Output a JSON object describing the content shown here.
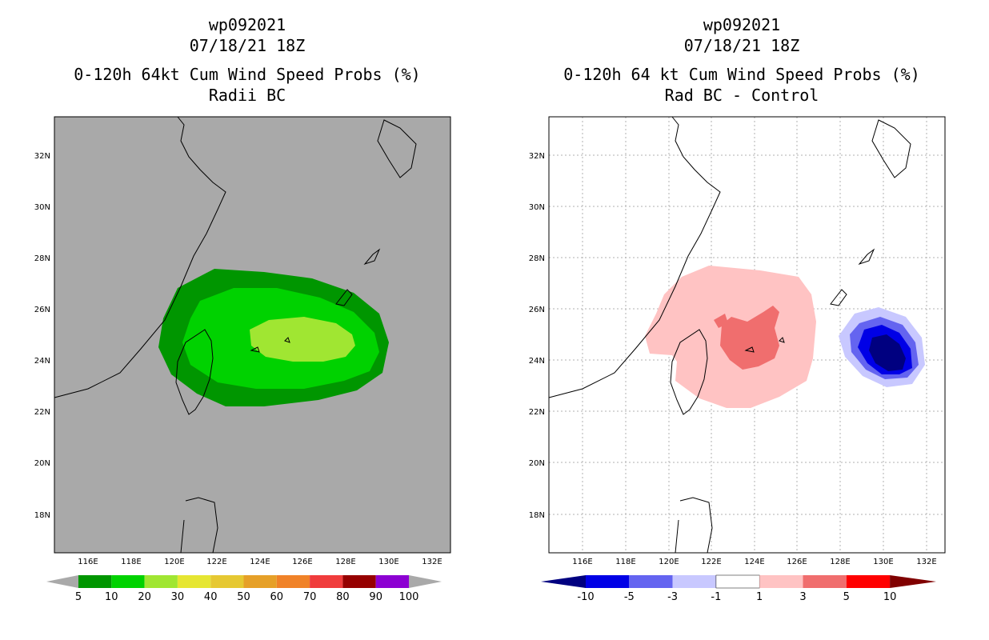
{
  "left": {
    "titles": [
      "wp092021",
      "07/18/21 18Z",
      "0-120h 64kt Cum Wind Speed Probs (%)",
      "Radii BC"
    ],
    "background": "#a9a9a9",
    "colorbar": {
      "labels": [
        "5",
        "10",
        "20",
        "30",
        "40",
        "50",
        "60",
        "70",
        "80",
        "90",
        "100"
      ],
      "colors": [
        "#009600",
        "#00d200",
        "#a0e632",
        "#e6e632",
        "#e6c832",
        "#e6a028",
        "#f08228",
        "#f03c3c",
        "#960000",
        "#8c00d2"
      ],
      "end_color": "#a9a9a9"
    }
  },
  "right": {
    "titles": [
      "wp092021",
      "07/18/21 18Z",
      "0-120h 64 kt Cum Wind Speed Probs (%)",
      "Rad BC - Control"
    ],
    "background": "#ffffff",
    "colorbar": {
      "labels": [
        "-10",
        "-5",
        "-3",
        "-1",
        "1",
        "3",
        "5",
        "10"
      ],
      "colors": [
        "#0000e6",
        "#6464f0",
        "#c8c8ff",
        "#ffffff",
        "#ffc3c3",
        "#f06e6e",
        "#ff0000"
      ],
      "end_left": "#000080",
      "end_right": "#800000"
    }
  },
  "axes": {
    "lon_ticks": [
      "116E",
      "118E",
      "120E",
      "122E",
      "124E",
      "126E",
      "128E",
      "130E",
      "132E"
    ],
    "lat_ticks": [
      "32N",
      "30N",
      "28N",
      "26N",
      "24N",
      "22N",
      "20N",
      "18N"
    ]
  }
}
